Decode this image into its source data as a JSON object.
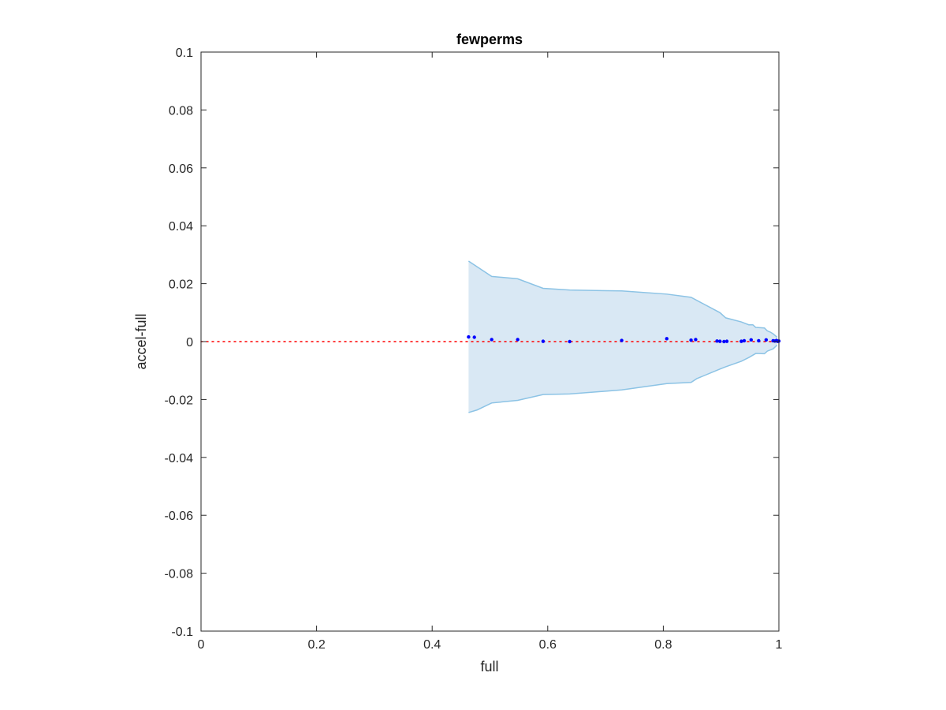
{
  "chart_data": {
    "type": "scatter",
    "title": "fewperms",
    "xlabel": "full",
    "ylabel": "accel-full",
    "xlim": [
      0,
      1
    ],
    "ylim": [
      -0.1,
      0.1
    ],
    "xticks": [
      0,
      0.2,
      0.4,
      0.6,
      0.8,
      1
    ],
    "xtick_labels": [
      "0",
      "0.2",
      "0.4",
      "0.6",
      "0.8",
      "1"
    ],
    "yticks": [
      0.1,
      0.08,
      0.06,
      0.04,
      0.02,
      0,
      -0.02,
      -0.04,
      -0.06,
      -0.08,
      -0.1
    ],
    "ytick_labels": [
      "0.1",
      "0.08",
      "0.06",
      "0.04",
      "0.02",
      "0",
      "-0.02",
      "-0.04",
      "-0.06",
      "-0.08",
      "-0.1"
    ],
    "grid": false,
    "reference_line": {
      "y": 0,
      "style": "dotted",
      "color": "#ff0000"
    },
    "band": {
      "upper": {
        "x": [
          0.463,
          0.503,
          0.548,
          0.592,
          0.638,
          0.728,
          0.806,
          0.848,
          0.898,
          0.908,
          0.935,
          0.948,
          0.955,
          0.96,
          0.975,
          0.98,
          0.985,
          0.99,
          0.997
        ],
        "y": [
          0.0278,
          0.0225,
          0.0217,
          0.0184,
          0.0178,
          0.0175,
          0.0164,
          0.0153,
          0.01,
          0.0082,
          0.0068,
          0.0058,
          0.0058,
          0.0049,
          0.0047,
          0.0037,
          0.0033,
          0.0027,
          0.0015
        ]
      },
      "lower": {
        "x": [
          0.463,
          0.478,
          0.503,
          0.548,
          0.592,
          0.638,
          0.728,
          0.806,
          0.848,
          0.858,
          0.898,
          0.908,
          0.935,
          0.948,
          0.96,
          0.975,
          0.98,
          0.99,
          0.997
        ],
        "y": [
          -0.0245,
          -0.0236,
          -0.0212,
          -0.0203,
          -0.0183,
          -0.0181,
          -0.0167,
          -0.0145,
          -0.0141,
          -0.0128,
          -0.0095,
          -0.0087,
          -0.0068,
          -0.0055,
          -0.0041,
          -0.0042,
          -0.0033,
          -0.0025,
          -0.0012
        ]
      },
      "fill": "#d9e8f4",
      "stroke": "#8cc3e5"
    },
    "series": [
      {
        "marker": "dot",
        "color": "#0000ff",
        "x": [
          0.463,
          0.473,
          0.503,
          0.548,
          0.592,
          0.638,
          0.728,
          0.806,
          0.848,
          0.856,
          0.893,
          0.898,
          0.905,
          0.91,
          0.935,
          0.94,
          0.952,
          0.965,
          0.978,
          0.99,
          0.993,
          0.996,
          0.998,
          1.0
        ],
        "y": [
          0.0016,
          0.0015,
          0.0007,
          0.0007,
          0.0001,
          0.0,
          0.0004,
          0.001,
          0.0005,
          0.0007,
          0.0002,
          0.0001,
          0.0,
          0.0001,
          0.0001,
          0.0003,
          0.0006,
          0.0003,
          0.0006,
          0.0003,
          0.0002,
          0.0004,
          0.0001,
          0.0002
        ]
      }
    ],
    "colors": {
      "axis": "#262626",
      "background": "#ffffff"
    }
  }
}
